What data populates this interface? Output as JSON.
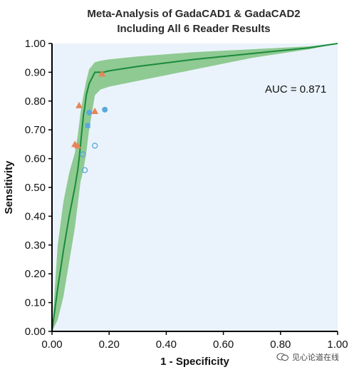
{
  "chart_data": {
    "type": "scatter",
    "title": "Meta-Analysis of GadaCAD1 & GadaCAD2",
    "subtitle": "Including All 6 Reader Results",
    "xlabel": "1 - Specificity",
    "ylabel": "Sensitivity",
    "xlim": [
      0,
      1
    ],
    "ylim": [
      0,
      1
    ],
    "x_ticks": [
      "0.00",
      "0.20",
      "0.40",
      "0.60",
      "0.80",
      "1.00"
    ],
    "y_ticks": [
      "0.00",
      "0.10",
      "0.20",
      "0.30",
      "0.40",
      "0.50",
      "0.60",
      "0.70",
      "0.80",
      "0.90",
      "1.00"
    ],
    "grid": false,
    "annotation": "AUC = 0.871",
    "roc_curve": {
      "x": [
        0.0,
        0.02,
        0.04,
        0.06,
        0.08,
        0.09,
        0.095,
        0.1,
        0.105,
        0.11,
        0.115,
        0.12,
        0.125,
        0.13,
        0.14,
        0.15,
        0.17,
        0.18,
        0.2,
        0.3,
        0.5,
        0.7,
        0.9,
        1.0
      ],
      "y": [
        0.0,
        0.15,
        0.28,
        0.4,
        0.5,
        0.56,
        0.6,
        0.65,
        0.7,
        0.75,
        0.78,
        0.82,
        0.84,
        0.86,
        0.88,
        0.9,
        0.9,
        0.9,
        0.905,
        0.92,
        0.945,
        0.965,
        0.985,
        1.0
      ]
    },
    "confidence_band": {
      "x": [
        0.0,
        0.02,
        0.04,
        0.06,
        0.08,
        0.09,
        0.1,
        0.11,
        0.12,
        0.13,
        0.15,
        0.17,
        0.2,
        0.3,
        0.5,
        0.7,
        0.9,
        1.0
      ],
      "upper": [
        0.0,
        0.3,
        0.45,
        0.55,
        0.62,
        0.68,
        0.76,
        0.82,
        0.87,
        0.91,
        0.935,
        0.94,
        0.945,
        0.955,
        0.97,
        0.98,
        0.99,
        1.0
      ],
      "lower": [
        0.0,
        0.04,
        0.12,
        0.24,
        0.36,
        0.44,
        0.52,
        0.56,
        0.62,
        0.7,
        0.82,
        0.84,
        0.85,
        0.87,
        0.91,
        0.95,
        0.98,
        1.0
      ]
    },
    "points": [
      {
        "x": 0.08,
        "y": 0.65,
        "marker": "triangle",
        "color": "#e8845a"
      },
      {
        "x": 0.09,
        "y": 0.645,
        "marker": "triangle",
        "color": "#e8845a"
      },
      {
        "x": 0.095,
        "y": 0.785,
        "marker": "triangle",
        "color": "#e8845a"
      },
      {
        "x": 0.15,
        "y": 0.765,
        "marker": "triangle",
        "color": "#e8845a"
      },
      {
        "x": 0.175,
        "y": 0.895,
        "marker": "triangle",
        "color": "#e8845a"
      },
      {
        "x": 0.13,
        "y": 0.76,
        "marker": "circle-filled",
        "color": "#5aa8dc"
      },
      {
        "x": 0.185,
        "y": 0.77,
        "marker": "circle-filled",
        "color": "#5aa8dc"
      },
      {
        "x": 0.125,
        "y": 0.715,
        "marker": "square-filled",
        "color": "#5aa8dc"
      },
      {
        "x": 0.108,
        "y": 0.615,
        "marker": "circle-open",
        "color": "#5aa8dc"
      },
      {
        "x": 0.115,
        "y": 0.56,
        "marker": "circle-open",
        "color": "#5aa8dc"
      },
      {
        "x": 0.15,
        "y": 0.645,
        "marker": "circle-open",
        "color": "#5aa8dc"
      }
    ],
    "colors": {
      "plot_background": "#eaf3fb",
      "band": "#7fc27f",
      "curve": "#1a8a3a",
      "axis": "#000000"
    }
  },
  "watermark": {
    "text": "见心论道在线",
    "logo_icon": "wechat-logo-icon"
  }
}
